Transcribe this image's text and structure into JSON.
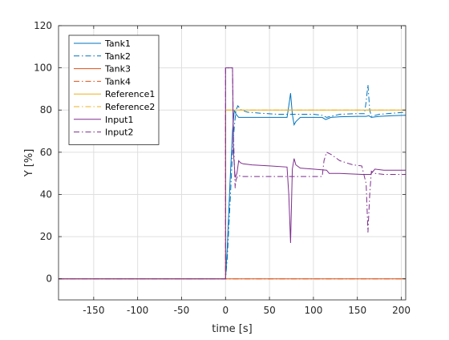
{
  "chart_data": {
    "type": "line",
    "xlabel": "time [s]",
    "ylabel": "Y [%]",
    "xlim": [
      -190,
      205
    ],
    "ylim": [
      -10,
      120
    ],
    "xticks": [
      -150,
      -100,
      -50,
      0,
      50,
      100,
      150,
      200
    ],
    "yticks": [
      0,
      20,
      40,
      60,
      80,
      100,
      120
    ],
    "grid": true,
    "legend_position": "top-left",
    "series": [
      {
        "name": "Tank1",
        "color": "#0072BD",
        "dash": "solid",
        "x": [
          -190,
          0,
          2,
          5,
          8,
          10,
          12,
          15,
          25,
          40,
          60,
          70,
          72,
          74,
          76,
          78,
          80,
          85,
          95,
          110,
          114,
          120,
          130,
          150,
          160,
          163,
          166,
          175,
          190,
          205
        ],
        "y": [
          0,
          0,
          15,
          45,
          70,
          80,
          78,
          76.5,
          76.5,
          76.5,
          76.5,
          76.5,
          82,
          88,
          78,
          73,
          74.5,
          76.5,
          76.5,
          76.5,
          75.5,
          76.5,
          76.8,
          77,
          77,
          77.3,
          76.5,
          77,
          77.3,
          77.5
        ]
      },
      {
        "name": "Tank2",
        "color": "#0072BD",
        "dash": "dashdot",
        "x": [
          -190,
          0,
          2,
          5,
          8,
          10,
          12,
          14,
          18,
          25,
          40,
          60,
          100,
          110,
          115,
          120,
          130,
          150,
          158,
          160,
          162,
          164,
          166,
          175,
          190,
          205
        ],
        "y": [
          0,
          0,
          10,
          35,
          60,
          72,
          80,
          82,
          80,
          79,
          78.5,
          78,
          78,
          77.5,
          76.5,
          77,
          78,
          78.3,
          78.3,
          84,
          92,
          80,
          77,
          78,
          78.5,
          79
        ]
      },
      {
        "name": "Tank3",
        "color": "#D95319",
        "dash": "solid",
        "x": [
          -190,
          205
        ],
        "y": [
          0,
          0
        ]
      },
      {
        "name": "Tank4",
        "color": "#D95319",
        "dash": "dashdot",
        "x": [
          -190,
          205
        ],
        "y": [
          0,
          0
        ]
      },
      {
        "name": "Reference1",
        "color": "#EDB120",
        "dash": "solid",
        "x": [
          -190,
          0,
          0,
          205
        ],
        "y": [
          0,
          0,
          80,
          80
        ]
      },
      {
        "name": "Reference2",
        "color": "#EDB120",
        "dash": "dashdot",
        "x": [
          -190,
          0,
          0,
          205
        ],
        "y": [
          0,
          0,
          80,
          80
        ]
      },
      {
        "name": "Input1",
        "color": "#7E2F8E",
        "dash": "solid",
        "x": [
          -190,
          0,
          0,
          8,
          9,
          11,
          13,
          15,
          17,
          20,
          30,
          50,
          70,
          72,
          74,
          76,
          78,
          80,
          85,
          100,
          115,
          118,
          130,
          140,
          155,
          165,
          170,
          180,
          205
        ],
        "y": [
          0,
          0,
          100,
          100,
          60,
          48,
          50,
          56,
          55,
          54.5,
          54,
          53.5,
          53,
          40,
          17,
          52,
          57,
          54,
          52.5,
          52,
          51.5,
          50,
          50,
          49.8,
          49.5,
          49.5,
          52,
          51.5,
          51.5
        ]
      },
      {
        "name": "Input2",
        "color": "#7E2F8E",
        "dash": "dashdot",
        "x": [
          -190,
          0,
          0,
          8,
          9,
          10,
          11,
          12,
          14,
          20,
          50,
          100,
          110,
          112,
          115,
          120,
          130,
          145,
          155,
          160,
          162,
          164,
          166,
          170,
          180,
          205
        ],
        "y": [
          0,
          0,
          100,
          100,
          70,
          55,
          43,
          47,
          49,
          48.5,
          48.5,
          48.5,
          48.5,
          56,
          60,
          59,
          56,
          54,
          53.5,
          45,
          22,
          40,
          51,
          50,
          49.5,
          49.5
        ]
      }
    ]
  }
}
